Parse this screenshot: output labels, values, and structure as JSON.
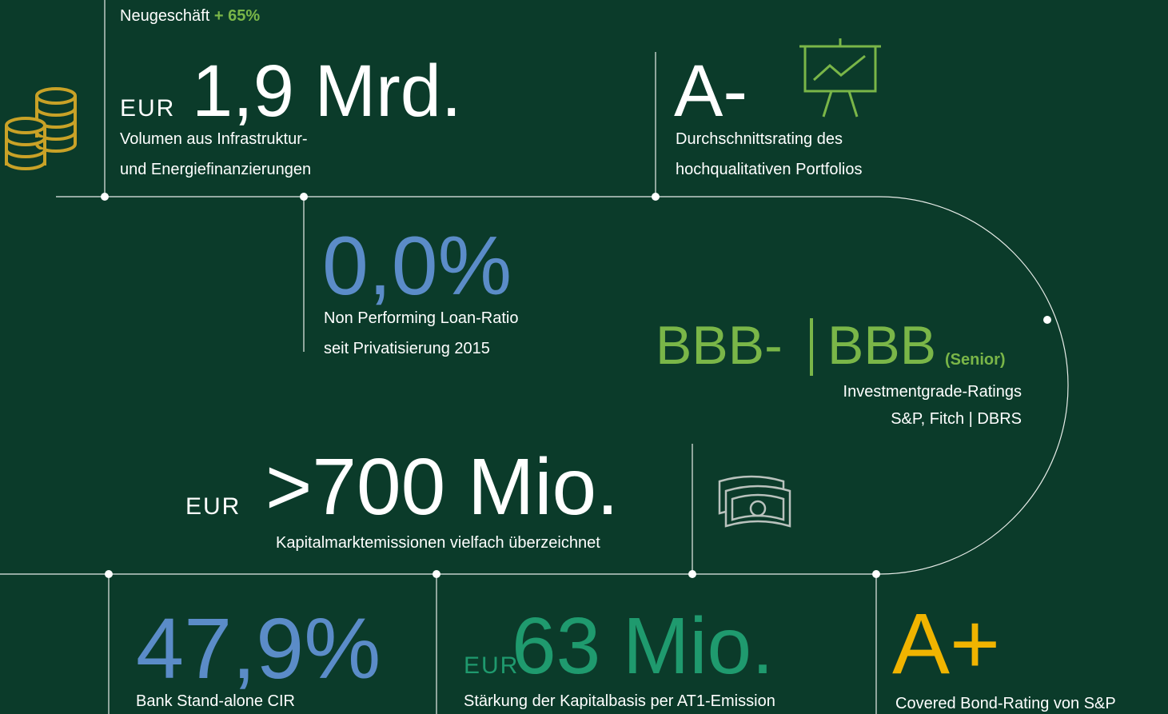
{
  "kpis": [
    {
      "note": "Neugeschäft",
      "note_highlight": "+ 65%",
      "prefix": "EUR",
      "value": "1,9 Mrd.",
      "caption": [
        "Volumen aus Infrastruktur-",
        "und Energiefinanzierungen"
      ]
    },
    {
      "value": "A-",
      "caption": [
        "Durchschnittsrating des",
        "hochqualitativen Portfolios"
      ]
    },
    {
      "value": "0,0%",
      "caption": [
        "Non Performing Loan-Ratio",
        "seit Privatisierung 2015"
      ]
    },
    {
      "value": "BBB-",
      "value2": "BBB",
      "suffix": "(Senior)",
      "caption": [
        "Investmentgrade-Ratings",
        "S&P, Fitch | DBRS"
      ]
    },
    {
      "prefix": "EUR",
      "value": ">700 Mio.",
      "caption": [
        "Kapitalmarktemissionen vielfach überzeichnet"
      ]
    },
    {
      "value": "47,9%",
      "caption": [
        "Bank Stand-alone CIR"
      ]
    },
    {
      "prefix": "EUR",
      "value": "63 Mio.",
      "caption": [
        "Stärkung der Kapitalbasis per AT1-Emission"
      ]
    },
    {
      "value": "A+",
      "caption": [
        "Covered Bond-Rating von S&P"
      ]
    }
  ]
}
